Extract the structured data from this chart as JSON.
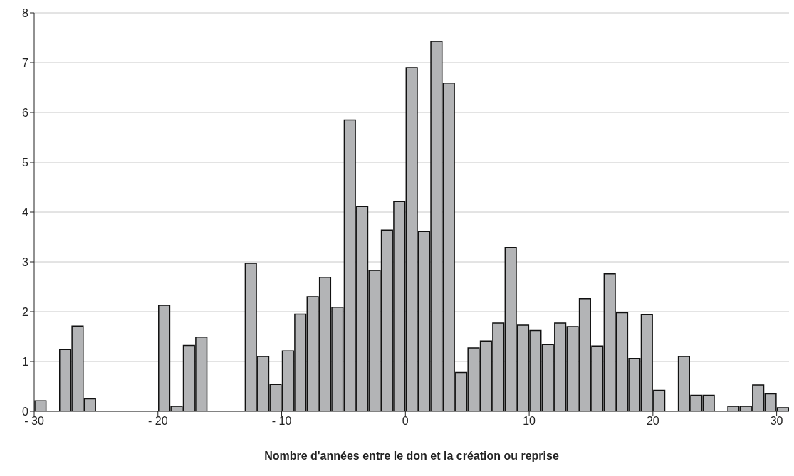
{
  "chart_data": {
    "type": "histogram",
    "xlabel": "Nombre d'années entre le don et la création ou reprise",
    "bins": [
      -30,
      -29,
      -28,
      -27,
      -26,
      -25,
      -24,
      -23,
      -22,
      -21,
      -20,
      -19,
      -18,
      -17,
      -16,
      -15,
      -14,
      -13,
      -12,
      -11,
      -10,
      -9,
      -8,
      -7,
      -6,
      -5,
      -4,
      -3,
      -2,
      -1,
      0,
      1,
      2,
      3,
      4,
      5,
      6,
      7,
      8,
      9,
      10,
      11,
      12,
      13,
      14,
      15,
      16,
      17,
      18,
      19,
      20,
      21,
      22,
      23,
      24,
      25,
      26,
      27,
      28,
      29,
      30,
      31
    ],
    "values": [
      0.21,
      0,
      1.24,
      1.71,
      0.25,
      0,
      0,
      0,
      0,
      0,
      2.13,
      0.1,
      1.32,
      1.49,
      0,
      0,
      0,
      2.97,
      1.1,
      0.54,
      1.21,
      1.95,
      2.3,
      2.69,
      2.09,
      5.85,
      4.11,
      2.83,
      3.64,
      4.21,
      6.9,
      3.61,
      7.43,
      6.59,
      0.78,
      1.27,
      1.41,
      1.77,
      3.29,
      1.73,
      1.62,
      1.34,
      1.77,
      1.7,
      2.26,
      1.31,
      2.76,
      1.98,
      1.06,
      1.94,
      0.42,
      0,
      1.1,
      0.32,
      0.32,
      0,
      0.1,
      0.1,
      0.53,
      0.35,
      0.07
    ],
    "color": "#b3b4b6",
    "xlim": [
      -30,
      31
    ],
    "xticks": [
      {
        "value": -30,
        "label": "- 30"
      },
      {
        "value": -20,
        "label": "- 20"
      },
      {
        "value": -10,
        "label": "- 10"
      },
      0,
      10,
      20,
      30
    ],
    "ylim": [
      0,
      8
    ],
    "yticks": [
      0,
      1,
      2,
      3,
      4,
      5,
      6,
      7,
      8
    ],
    "grid": "y"
  }
}
